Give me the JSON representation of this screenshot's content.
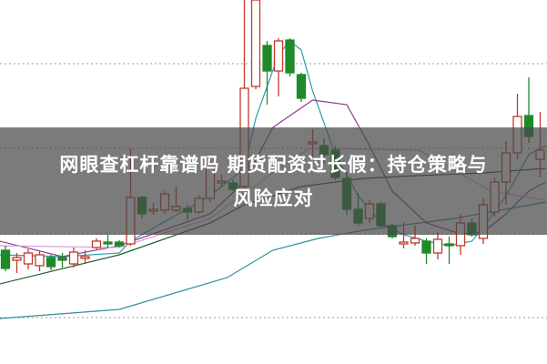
{
  "headline": {
    "line1": "网眼查杠杆靠谱吗 期货配资过长假：持仓策略与",
    "line2": "风险应对"
  },
  "colors": {
    "up": "#c0392b",
    "down": "#1e8a2a",
    "grid": "#999999",
    "band": "#484848"
  },
  "chart_data": {
    "type": "candlestick",
    "ylim": [
      0,
      400
    ],
    "grid": "horizontal-dotted",
    "candles": [
      [
        125,
        130,
        102,
        105
      ],
      [
        114,
        122,
        100,
        117
      ],
      [
        110,
        126,
        104,
        122
      ],
      [
        108,
        124,
        102,
        120
      ],
      [
        117,
        120,
        103,
        107
      ],
      [
        117,
        122,
        106,
        114
      ],
      [
        110,
        128,
        106,
        123
      ],
      [
        116,
        125,
        110,
        118
      ],
      [
        128,
        138,
        126,
        135
      ],
      [
        134,
        142,
        128,
        132
      ],
      [
        134,
        136,
        128,
        130
      ],
      [
        132,
        237,
        130,
        183
      ],
      [
        183,
        185,
        160,
        165
      ],
      [
        168,
        177,
        164,
        170
      ],
      [
        169,
        190,
        165,
        187
      ],
      [
        169,
        195,
        167,
        173
      ],
      [
        171,
        175,
        158,
        167
      ],
      [
        167,
        185,
        165,
        182
      ],
      [
        182,
        225,
        178,
        220
      ],
      [
        199,
        208,
        195,
        201
      ],
      [
        199,
        203,
        190,
        192
      ],
      [
        195,
        400,
        193,
        303
      ],
      [
        305,
        400,
        302,
        400
      ],
      [
        350,
        355,
        285,
        322
      ],
      [
        322,
        358,
        294,
        355
      ],
      [
        356,
        358,
        316,
        320
      ],
      [
        318,
        320,
        288,
        292
      ],
      [
        242,
        258,
        225,
        244
      ],
      [
        240,
        248,
        220,
        230
      ],
      [
        235,
        240,
        202,
        205
      ],
      [
        204,
        210,
        164,
        170
      ],
      [
        170,
        188,
        152,
        155
      ],
      [
        160,
        180,
        155,
        176
      ],
      [
        176,
        178,
        150,
        152
      ],
      [
        152,
        154,
        138,
        140
      ],
      [
        132,
        156,
        127,
        134
      ],
      [
        133,
        152,
        130,
        138
      ],
      [
        135,
        138,
        110,
        122
      ],
      [
        122,
        145,
        115,
        137
      ],
      [
        132,
        140,
        110,
        130
      ],
      [
        130,
        165,
        120,
        155
      ],
      [
        155,
        160,
        140,
        142
      ],
      [
        138,
        182,
        132,
        175
      ],
      [
        167,
        205,
        162,
        200
      ],
      [
        200,
        245,
        175,
        232
      ],
      [
        232,
        297,
        225,
        272
      ],
      [
        273,
        315,
        243,
        250
      ],
      [
        225,
        277,
        205,
        235
      ]
    ],
    "candle_format": [
      "open",
      "high",
      "low",
      "close"
    ],
    "moving_averages": [
      {
        "color": "#2a9bb0",
        "points": [
          [
            -0.5,
            120
          ],
          [
            5,
            118
          ],
          [
            10,
            122
          ],
          [
            11,
            135
          ],
          [
            18,
            185
          ],
          [
            21,
            215
          ],
          [
            22,
            270
          ],
          [
            24,
            340
          ],
          [
            25,
            355
          ],
          [
            26,
            345
          ],
          [
            27,
            300
          ],
          [
            29,
            230
          ],
          [
            31,
            185
          ],
          [
            33,
            155
          ],
          [
            35,
            142
          ],
          [
            37,
            135
          ],
          [
            39,
            130
          ],
          [
            41,
            135
          ],
          [
            42,
            150
          ],
          [
            44,
            185
          ],
          [
            46,
            230
          ],
          [
            47.5,
            240
          ]
        ]
      },
      {
        "color": "#8a3d8f",
        "points": [
          [
            -0.5,
            135
          ],
          [
            5,
            118
          ],
          [
            10,
            130
          ],
          [
            18,
            165
          ],
          [
            21,
            200
          ],
          [
            23.5,
            260
          ],
          [
            27,
            290
          ],
          [
            30,
            285
          ],
          [
            32,
            240
          ],
          [
            34,
            190
          ],
          [
            37,
            155
          ],
          [
            40,
            143
          ],
          [
            42,
            145
          ],
          [
            44,
            165
          ],
          [
            46,
            190
          ],
          [
            47.5,
            200
          ]
        ]
      },
      {
        "color": "#1f5a2a",
        "points": [
          [
            -0.5,
            88
          ],
          [
            10,
            120
          ],
          [
            18,
            155
          ],
          [
            21,
            175
          ],
          [
            26,
            195
          ],
          [
            31.5,
            204
          ],
          [
            36.3,
            207
          ],
          [
            42,
            210
          ],
          [
            47.5,
            215
          ]
        ]
      },
      {
        "color": "#2f8f9a",
        "points": [
          [
            -0.5,
            50
          ],
          [
            10,
            60
          ],
          [
            19.5,
            95
          ],
          [
            23.5,
            125
          ],
          [
            27.5,
            138
          ],
          [
            31.5,
            147
          ],
          [
            39.5,
            160
          ],
          [
            47.5,
            178
          ]
        ]
      },
      {
        "color": "#d6a0d8",
        "points": [
          [
            -0.5,
            130
          ],
          [
            10,
            128
          ],
          [
            18,
            160
          ],
          [
            23.5,
            210
          ],
          [
            26.7,
            237
          ],
          [
            36.3,
            235
          ],
          [
            42.7,
            190
          ],
          [
            47.5,
            180
          ]
        ]
      }
    ],
    "gridlines": [
      330,
      237,
      143,
      51
    ]
  }
}
